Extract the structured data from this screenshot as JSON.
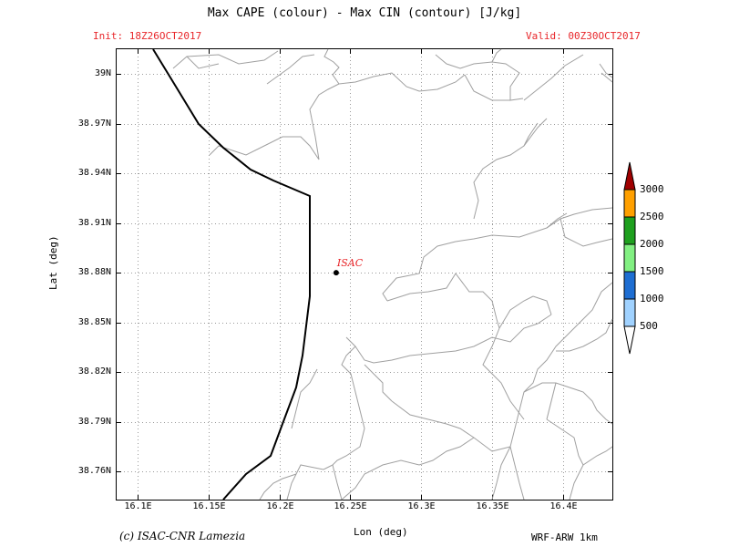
{
  "header": {
    "title": "Max CAPE (colour) - Max CIN (contour) [J/kg]",
    "init": "Init: 18Z26OCT2017",
    "valid": "Valid: 00Z30OCT2017"
  },
  "axes": {
    "y_title": "Lat (deg)",
    "x_title": "Lon (deg)",
    "y_ticks": [
      "39N",
      "38.97N",
      "38.94N",
      "38.91N",
      "38.88N",
      "38.85N",
      "38.82N",
      "38.79N",
      "38.76N"
    ],
    "x_ticks": [
      "16.1E",
      "16.15E",
      "16.2E",
      "16.25E",
      "16.3E",
      "16.35E",
      "16.4E"
    ],
    "x_range": [
      16.085,
      16.435
    ],
    "y_range": [
      38.743,
      39.015
    ]
  },
  "station": {
    "label": "ISAC",
    "lon": 16.24,
    "lat": 38.88,
    "color": "#e8262a"
  },
  "colorbar": {
    "labels": [
      "500",
      "1000",
      "1500",
      "2000",
      "2500",
      "3000"
    ],
    "colors": [
      "#a0d2ff",
      "#1e6ed2",
      "#82f082",
      "#1ea01e",
      "#ffa000",
      "#a00000"
    ]
  },
  "footer": {
    "copyright": "(c) ISAC-CNR Lamezia",
    "model": "WRF-ARW 1km"
  }
}
